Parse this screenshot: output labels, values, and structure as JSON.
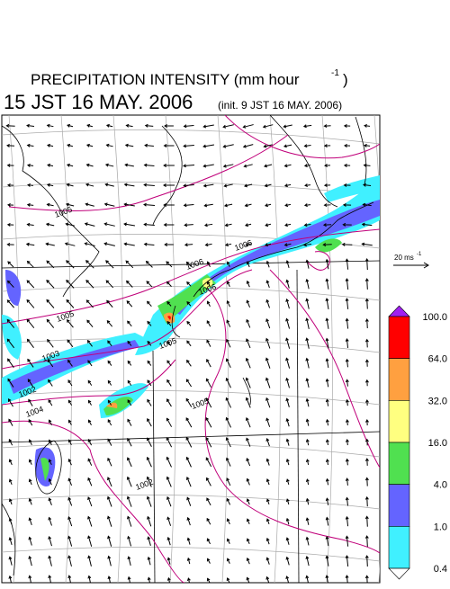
{
  "title": {
    "text": "PRECIPITATION INTENSITY (mm hour",
    "exponent": "-1",
    "close": ")"
  },
  "subtitle": {
    "valid": "15 JST 16 MAY. 2006",
    "init": "(init. 9 JST 16 MAY. 2006)"
  },
  "vector_key": {
    "text": "20 ms",
    "exponent": "-1"
  },
  "colorbar": {
    "labels": [
      "100.0",
      "64.0",
      "32.0",
      "16.0",
      "4.0",
      "1.0",
      "0.4"
    ],
    "colors": [
      "#ff0000",
      "#ffa040",
      "#ffff80",
      "#50e050",
      "#6464ff",
      "#40f0ff"
    ],
    "over_color": "#a020f0",
    "under_color": "#ffffff"
  },
  "contour_labels": [
    "1005",
    "1006",
    "1006",
    "1006",
    "1005",
    "1005",
    "1003",
    "1002",
    "1004",
    "1005",
    "1002"
  ]
}
